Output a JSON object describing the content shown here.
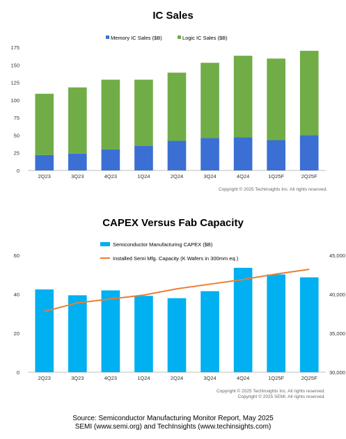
{
  "charts": [
    {
      "title": "IC Sales",
      "copyright": [
        "Copyright © 2025 TechInsights Inc.  All rights reserved."
      ]
    },
    {
      "title": "CAPEX Versus Fab Capacity",
      "copyright": [
        "Copyright © 2025 TechInsights Inc.  All rights reserved.",
        "Copyright © 2025 SEMI.  All rights reserved."
      ]
    }
  ],
  "footer": {
    "line1": "Source: Semiconductor Manufacturing Monitor Report, May 2025",
    "line2": "SEMI (www.semi.org) and TechInsights (www.techinsights.com)"
  },
  "colors": {
    "memory": "#3b6fd4",
    "logic": "#70ad47",
    "capex": "#00b0f0",
    "capacity": "#ed7d31",
    "axis": "#bfbfbf"
  },
  "chart_data": [
    {
      "type": "bar",
      "stacked": true,
      "title": "IC Sales",
      "categories": [
        "2Q23",
        "3Q23",
        "4Q23",
        "1Q24",
        "2Q24",
        "3Q24",
        "4Q24",
        "1Q25F",
        "2Q25F"
      ],
      "series": [
        {
          "name": "Memory IC Sales ($B)",
          "values": [
            22,
            24,
            30,
            35,
            42,
            46,
            47,
            43,
            50
          ]
        },
        {
          "name": "Logic IC Sales ($B)",
          "values": [
            87,
            94,
            99,
            94,
            97,
            107,
            116,
            116,
            120
          ]
        }
      ],
      "ylim": [
        0,
        175
      ],
      "yticks": [
        0,
        25,
        50,
        75,
        100,
        125,
        150,
        175
      ],
      "grid": false,
      "legend": "top-center"
    },
    {
      "type": "bar+line",
      "title": "CAPEX Versus Fab Capacity",
      "categories": [
        "2Q23",
        "3Q23",
        "4Q23",
        "1Q24",
        "2Q24",
        "3Q24",
        "4Q24",
        "1Q25F",
        "2Q25F"
      ],
      "series": [
        {
          "name": "Semiconductor Manufacturing CAPEX ($B)",
          "axis": "left",
          "type": "bar",
          "values": [
            42.5,
            39.5,
            42,
            39.2,
            38,
            41.6,
            53.6,
            50.2,
            48.7
          ]
        },
        {
          "name": "Installed Semi Mfg. Capacity (K Wafers in 300mm eq.)",
          "axis": "right",
          "type": "line",
          "values": [
            37800,
            38900,
            39400,
            39900,
            40700,
            41300,
            41900,
            42600,
            43200
          ]
        }
      ],
      "ylim_left": [
        0,
        60
      ],
      "yticks_left": [
        0,
        20,
        40,
        60
      ],
      "ylim_right": [
        30000,
        45000
      ],
      "yticks_right": [
        "30,000",
        "35,000",
        "40,000",
        "45,000"
      ],
      "grid": false,
      "legend": "top-center"
    }
  ]
}
